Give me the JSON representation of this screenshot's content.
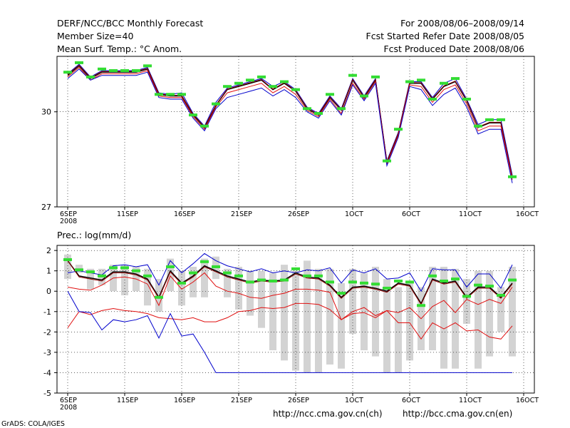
{
  "header": {
    "title": "DERF/NCC/BCC Monthly Forecast",
    "member_size": "Member Size=40",
    "variable": "Mean Surf. Temp.: °C Anom.",
    "period": "For 2008/08/06–2008/09/14",
    "start_ref": "Fcst Started Refer Date 2008/08/05",
    "produced": "Fcst Produced Date 2008/08/06"
  },
  "footer": {
    "url_ch": "http://ncc.cma.gov.cn(ch)",
    "url_en": "http://bcc.cma.gov.cn(en)",
    "grads": "GrADS: COLA/IGES"
  },
  "colors": {
    "ensemble_mean": "#000000",
    "observed": "#8b0000",
    "spread_red": "#e01010",
    "spread_blue": "#0000cc",
    "marker_green": "#33dd33",
    "bar_gray": "#d3d3d3",
    "marker_light": "#b0b8e8"
  },
  "chart_data": [
    {
      "type": "line",
      "name": "temperature",
      "ylabel": "",
      "ylim": [
        27,
        31.75
      ],
      "yticks": [
        27,
        30
      ],
      "xlim": [
        0,
        40
      ],
      "xticks": [
        {
          "x": 0,
          "label": "6SEP",
          "sub": "2008"
        },
        {
          "x": 5,
          "label": "11SEP",
          "sub": ""
        },
        {
          "x": 10,
          "label": "16SEP",
          "sub": ""
        },
        {
          "x": 15,
          "label": "21SEP",
          "sub": ""
        },
        {
          "x": 20,
          "label": "26SEP",
          "sub": ""
        },
        {
          "x": 25,
          "label": "1OCT",
          "sub": ""
        },
        {
          "x": 30,
          "label": "6OCT",
          "sub": ""
        },
        {
          "x": 35,
          "label": "11OCT",
          "sub": ""
        },
        {
          "x": 40,
          "label": "16OCT",
          "sub": ""
        }
      ],
      "x": [
        0,
        1,
        2,
        3,
        4,
        5,
        6,
        7,
        8,
        9,
        10,
        11,
        12,
        13,
        14,
        15,
        16,
        17,
        18,
        19,
        20,
        21,
        22,
        23,
        24,
        25,
        26,
        27,
        28,
        29,
        30,
        31,
        32,
        33,
        34,
        35,
        36,
        37,
        38,
        39
      ],
      "series": [
        {
          "name": "upper",
          "color": "#0000cc",
          "values": [
            31.2,
            31.5,
            31.1,
            31.3,
            31.3,
            31.3,
            31.3,
            31.4,
            30.6,
            30.55,
            30.6,
            29.95,
            29.55,
            30.3,
            30.75,
            30.85,
            30.95,
            31.05,
            30.8,
            30.95,
            30.7,
            30.15,
            29.95,
            30.5,
            30.1,
            31.05,
            30.5,
            31.05,
            28.45,
            29.35,
            30.95,
            30.95,
            30.45,
            30.9,
            31.05,
            30.4,
            29.6,
            29.75,
            29.75,
            28.0
          ]
        },
        {
          "name": "ensemble-mean",
          "color": "#000000",
          "values": [
            31.15,
            31.45,
            31.05,
            31.25,
            31.25,
            31.25,
            31.25,
            31.35,
            30.55,
            30.5,
            30.5,
            29.9,
            29.5,
            30.2,
            30.7,
            30.8,
            30.9,
            31.0,
            30.7,
            30.9,
            30.65,
            30.1,
            29.9,
            30.45,
            30.05,
            31.0,
            30.45,
            31.0,
            28.4,
            29.3,
            30.9,
            30.9,
            30.4,
            30.8,
            30.95,
            30.35,
            29.5,
            29.65,
            29.65,
            27.9
          ]
        },
        {
          "name": "observed",
          "color": "#8b0000",
          "values": [
            31.18,
            31.47,
            31.08,
            31.27,
            31.27,
            31.27,
            31.28,
            31.37,
            30.57,
            30.52,
            30.52,
            29.92,
            29.52,
            30.22,
            30.72,
            30.82,
            30.92,
            31.02,
            30.72,
            30.92,
            30.67,
            30.12,
            29.92,
            30.47,
            30.07,
            31.02,
            30.47,
            31.02,
            28.42,
            29.32,
            30.92,
            30.92,
            30.42,
            30.82,
            30.97,
            30.37,
            29.52,
            29.67,
            29.67,
            27.92
          ]
        },
        {
          "name": "lower-red",
          "color": "#e01010",
          "values": [
            31.1,
            31.4,
            31.0,
            31.2,
            31.2,
            31.2,
            31.2,
            31.3,
            30.5,
            30.45,
            30.45,
            29.85,
            29.45,
            30.15,
            30.6,
            30.7,
            30.8,
            30.9,
            30.6,
            30.8,
            30.55,
            30.05,
            29.85,
            30.4,
            29.95,
            30.9,
            30.4,
            30.95,
            28.35,
            29.25,
            30.85,
            30.8,
            30.3,
            30.7,
            30.85,
            30.25,
            29.4,
            29.55,
            29.55,
            27.85
          ]
        },
        {
          "name": "lower-blue",
          "color": "#0000cc",
          "values": [
            31.05,
            31.35,
            31.0,
            31.15,
            31.15,
            31.15,
            31.15,
            31.25,
            30.45,
            30.4,
            30.4,
            29.8,
            29.4,
            30.1,
            30.45,
            30.55,
            30.65,
            30.75,
            30.5,
            30.7,
            30.45,
            30.0,
            29.8,
            30.35,
            29.9,
            30.85,
            30.35,
            30.9,
            28.3,
            29.2,
            30.8,
            30.7,
            30.2,
            30.55,
            30.75,
            30.15,
            29.3,
            29.45,
            29.45,
            27.75
          ]
        }
      ],
      "markers": {
        "name": "green-markers",
        "color": "#33dd33",
        "values": [
          31.25,
          31.55,
          31.1,
          31.35,
          31.3,
          31.3,
          31.3,
          31.45,
          30.55,
          30.55,
          30.55,
          29.9,
          29.55,
          30.25,
          30.8,
          30.9,
          31.0,
          31.1,
          30.8,
          30.95,
          30.7,
          30.1,
          29.95,
          30.55,
          30.1,
          31.15,
          30.5,
          31.1,
          28.45,
          29.45,
          30.95,
          31.0,
          30.4,
          30.9,
          31.05,
          30.4,
          29.55,
          29.75,
          29.75,
          27.95
        ]
      }
    },
    {
      "type": "line",
      "name": "precipitation",
      "title": "Prec.: log(mm/d)",
      "ylim": [
        -5,
        2.25
      ],
      "yticks": [
        2,
        1,
        0,
        -1,
        -2,
        -3,
        -4,
        -5
      ],
      "xlim": [
        0,
        40
      ],
      "x": [
        0,
        1,
        2,
        3,
        4,
        5,
        6,
        7,
        8,
        9,
        10,
        11,
        12,
        13,
        14,
        15,
        16,
        17,
        18,
        19,
        20,
        21,
        22,
        23,
        24,
        25,
        26,
        27,
        28,
        29,
        30,
        31,
        32,
        33,
        34,
        35,
        36,
        37,
        38,
        39
      ],
      "bars": {
        "name": "spread-bars",
        "color": "#d3d3d3",
        "low": [
          0.6,
          0.9,
          0.1,
          0.3,
          0.0,
          -0.2,
          0.0,
          -0.7,
          -1.0,
          0.0,
          -0.7,
          -0.3,
          -0.3,
          0.6,
          -0.3,
          -0.9,
          -1.2,
          -1.8,
          -2.9,
          -3.4,
          -3.9,
          -4.0,
          -4.0,
          -3.6,
          -3.8,
          -2.1,
          -2.9,
          -3.2,
          -4.0,
          -4.0,
          -3.4,
          -2.9,
          -2.9,
          -3.8,
          -3.8,
          -1.6,
          -3.8,
          -3.2,
          -2.0,
          -3.2
        ],
        "high": [
          1.8,
          1.3,
          1.1,
          1.1,
          1.3,
          1.3,
          1.2,
          1.1,
          0.6,
          1.6,
          1.0,
          1.2,
          1.6,
          1.7,
          1.1,
          1.2,
          1.0,
          1.0,
          0.9,
          1.3,
          1.0,
          1.5,
          1.1,
          1.1,
          0.4,
          1.1,
          0.9,
          1.2,
          0.6,
          0.2,
          0.5,
          0.2,
          1.2,
          1.2,
          1.1,
          0.6,
          1.0,
          1.0,
          0.2,
          1.2
        ]
      },
      "series": [
        {
          "name": "upper-blue",
          "color": "#0000cc",
          "values": [
            0.9,
            1.0,
            0.9,
            0.8,
            1.25,
            1.3,
            1.2,
            1.3,
            0.3,
            1.5,
            0.9,
            1.35,
            1.85,
            1.5,
            1.25,
            1.1,
            0.95,
            1.1,
            0.9,
            1.0,
            0.9,
            1.05,
            1.0,
            1.15,
            0.4,
            1.05,
            0.9,
            1.1,
            0.6,
            0.65,
            0.9,
            0.0,
            1.1,
            1.05,
            1.05,
            0.2,
            0.85,
            0.85,
            0.15,
            1.3
          ]
        },
        {
          "name": "ensemble-mean",
          "color": "#000000",
          "values": [
            1.5,
            0.75,
            0.65,
            0.55,
            0.95,
            0.95,
            0.85,
            0.6,
            -0.3,
            1.0,
            0.4,
            0.75,
            1.25,
            1.0,
            0.75,
            0.6,
            0.45,
            0.55,
            0.5,
            0.55,
            0.9,
            0.7,
            0.65,
            0.3,
            -0.3,
            0.2,
            0.25,
            0.15,
            0.0,
            0.4,
            0.3,
            -0.6,
            0.6,
            0.4,
            0.5,
            -0.3,
            0.2,
            0.2,
            -0.3,
            0.4
          ]
        },
        {
          "name": "observed",
          "color": "#8b0000",
          "values": [
            1.5,
            0.7,
            0.6,
            0.5,
            0.9,
            0.9,
            0.8,
            0.55,
            -0.35,
            0.95,
            0.35,
            0.7,
            1.2,
            0.95,
            0.7,
            0.55,
            0.4,
            0.5,
            0.45,
            0.5,
            0.85,
            0.65,
            0.6,
            0.25,
            -0.35,
            0.15,
            0.2,
            0.1,
            -0.05,
            0.35,
            0.25,
            -0.65,
            0.55,
            0.35,
            0.45,
            -0.35,
            0.15,
            0.15,
            -0.35,
            0.35
          ]
        },
        {
          "name": "lower-red",
          "color": "#e01010",
          "values": [
            0.2,
            0.1,
            0.05,
            0.3,
            0.65,
            0.7,
            0.6,
            0.35,
            -0.7,
            0.75,
            0.1,
            0.45,
            0.9,
            0.25,
            0.0,
            -0.1,
            -0.3,
            -0.35,
            -0.2,
            -0.1,
            0.1,
            0.1,
            0.05,
            -0.05,
            -1.4,
            -1.0,
            -0.8,
            -1.2,
            -0.95,
            -1.05,
            -0.8,
            -1.35,
            -0.75,
            -0.45,
            -1.05,
            -0.4,
            -0.65,
            -0.4,
            -0.6,
            0.2
          ]
        },
        {
          "name": "lower-red-2",
          "color": "#e01010",
          "values": [
            -1.8,
            -1.0,
            -1.15,
            -0.95,
            -0.85,
            -0.95,
            -1.0,
            -1.1,
            -1.3,
            -1.35,
            -1.4,
            -1.3,
            -1.5,
            -1.5,
            -1.3,
            -1.0,
            -0.95,
            -0.8,
            -0.85,
            -0.8,
            -0.6,
            -0.6,
            -0.65,
            -0.9,
            -1.4,
            -1.1,
            -1.05,
            -1.3,
            -0.95,
            -1.55,
            -1.55,
            -2.35,
            -1.55,
            -1.85,
            -1.55,
            -1.95,
            -1.9,
            -2.25,
            -2.35,
            -1.7
          ]
        },
        {
          "name": "lowest-blue",
          "color": "#0000cc",
          "values": [
            0.0,
            -1.0,
            -1.05,
            -1.9,
            -1.4,
            -1.5,
            -1.4,
            -1.2,
            -2.3,
            -1.1,
            -2.2,
            -2.1,
            -3.0,
            -4.0,
            -4.0,
            -4.0,
            -4.0,
            -4.0,
            -4.0,
            -4.0,
            -4.0,
            -4.0,
            -4.0,
            -4.0,
            -4.0,
            -4.0,
            -4.0,
            -4.0,
            -4.0,
            -4.0,
            -4.0,
            -4.0,
            -4.0,
            -4.0,
            -4.0,
            -4.0,
            -4.0,
            -4.0,
            -4.0,
            -4.0
          ]
        }
      ],
      "markers": {
        "name": "green-markers",
        "color": "#33dd33",
        "values": [
          1.55,
          1.05,
          0.95,
          0.75,
          1.15,
          1.15,
          1.0,
          0.75,
          -0.3,
          1.2,
          0.4,
          0.9,
          1.45,
          1.2,
          0.9,
          0.75,
          0.45,
          0.55,
          0.5,
          0.55,
          1.1,
          0.75,
          0.75,
          0.45,
          -0.1,
          0.45,
          0.4,
          0.35,
          0.15,
          0.5,
          0.45,
          -0.7,
          0.75,
          0.5,
          0.6,
          -0.25,
          0.3,
          0.25,
          -0.2,
          0.55
        ]
      }
    }
  ]
}
